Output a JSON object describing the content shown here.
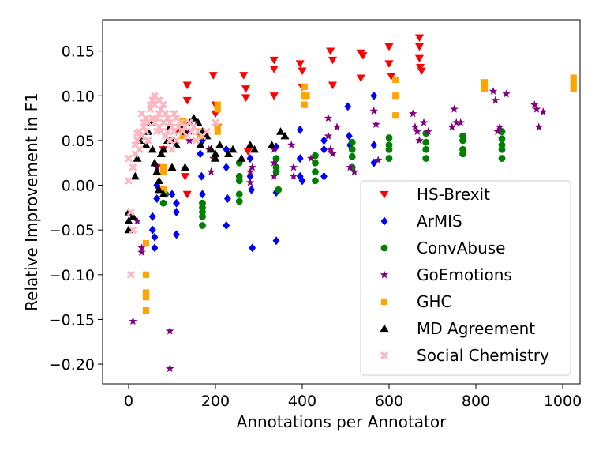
{
  "chart_data": {
    "type": "scatter",
    "title": "",
    "xlabel": "Annotations per Annotator",
    "ylabel": "Relative Improvement in F1",
    "xlim": [
      -60,
      1040
    ],
    "ylim": [
      -0.222,
      0.185
    ],
    "xticks": [
      0,
      200,
      400,
      600,
      800,
      1000
    ],
    "yticks": [
      -0.2,
      -0.15,
      -0.1,
      -0.05,
      0.0,
      0.05,
      0.1,
      0.15
    ],
    "xtick_labels": [
      "0",
      "200",
      "400",
      "600",
      "800",
      "1000"
    ],
    "ytick_labels": [
      "−0.20",
      "−0.15",
      "−0.10",
      "−0.05",
      "0.00",
      "0.05",
      "0.10",
      "0.15"
    ],
    "grid": false,
    "legend_position": "lower-right",
    "series": [
      {
        "name": "HS-Brexit",
        "color": "#ff0000",
        "marker": "triangle-down",
        "points": [
          [
            65,
            0.02
          ],
          [
            70,
            -0.005
          ],
          [
            80,
            0.04
          ],
          [
            95,
            0.05
          ],
          [
            110,
            0.06
          ],
          [
            130,
            0.01
          ],
          [
            135,
            0.095
          ],
          [
            135,
            0.112
          ],
          [
            135,
            -0.01
          ],
          [
            195,
            0.123
          ],
          [
            200,
            0.09
          ],
          [
            200,
            0.08
          ],
          [
            205,
            0.065
          ],
          [
            265,
            0.123
          ],
          [
            270,
            0.108
          ],
          [
            270,
            0.098
          ],
          [
            275,
            0.038
          ],
          [
            335,
            0.14
          ],
          [
            335,
            0.13
          ],
          [
            335,
            0.1
          ],
          [
            395,
            0.136
          ],
          [
            400,
            0.128
          ],
          [
            400,
            0.11
          ],
          [
            465,
            0.15
          ],
          [
            470,
            0.14
          ],
          [
            470,
            0.112
          ],
          [
            535,
            0.148
          ],
          [
            540,
            0.145
          ],
          [
            535,
            0.12
          ],
          [
            600,
            0.155
          ],
          [
            600,
            0.136
          ],
          [
            605,
            0.122
          ],
          [
            670,
            0.165
          ],
          [
            670,
            0.155
          ],
          [
            670,
            0.142
          ],
          [
            672,
            0.132
          ],
          [
            675,
            0.128
          ]
        ]
      },
      {
        "name": "ArMIS",
        "color": "#0000ff",
        "marker": "diamond",
        "points": [
          [
            55,
            -0.035
          ],
          [
            55,
            -0.05
          ],
          [
            60,
            -0.058
          ],
          [
            60,
            -0.07
          ],
          [
            65,
            0.0
          ],
          [
            65,
            -0.015
          ],
          [
            100,
            -0.01
          ],
          [
            110,
            -0.02
          ],
          [
            110,
            -0.03
          ],
          [
            110,
            -0.055
          ],
          [
            165,
            0.035
          ],
          [
            168,
            0.01
          ],
          [
            170,
            -0.01
          ],
          [
            170,
            0.05
          ],
          [
            225,
            0.04
          ],
          [
            225,
            0.02
          ],
          [
            228,
            -0.015
          ],
          [
            225,
            -0.045
          ],
          [
            280,
            0.03
          ],
          [
            280,
            0.01
          ],
          [
            283,
            -0.005
          ],
          [
            285,
            -0.07
          ],
          [
            340,
            0.043
          ],
          [
            340,
            0.02
          ],
          [
            340,
            -0.008
          ],
          [
            340,
            -0.062
          ],
          [
            395,
            0.062
          ],
          [
            395,
            0.03
          ],
          [
            395,
            0.01
          ],
          [
            400,
            0.005
          ],
          [
            450,
            0.05
          ],
          [
            450,
            0.04
          ],
          [
            450,
            0.01
          ],
          [
            505,
            0.088
          ],
          [
            508,
            0.055
          ],
          [
            510,
            0.045
          ],
          [
            565,
            0.1
          ],
          [
            565,
            0.045
          ],
          [
            565,
            0.025
          ]
        ]
      },
      {
        "name": "ConvAbuse",
        "color": "#008000",
        "marker": "circle",
        "points": [
          [
            80,
            -0.02
          ],
          [
            85,
            -0.01
          ],
          [
            170,
            -0.02
          ],
          [
            170,
            -0.025
          ],
          [
            170,
            -0.03
          ],
          [
            170,
            -0.035
          ],
          [
            170,
            -0.045
          ],
          [
            255,
            0.025
          ],
          [
            255,
            0.01
          ],
          [
            255,
            0.005
          ],
          [
            255,
            -0.01
          ],
          [
            255,
            -0.018
          ],
          [
            340,
            0.03
          ],
          [
            340,
            0.02
          ],
          [
            340,
            0.015
          ],
          [
            345,
            -0.005
          ],
          [
            430,
            0.033
          ],
          [
            430,
            0.025
          ],
          [
            430,
            0.015
          ],
          [
            430,
            0.005
          ],
          [
            515,
            0.048
          ],
          [
            515,
            0.04
          ],
          [
            515,
            0.032
          ],
          [
            515,
            0.02
          ],
          [
            600,
            0.053
          ],
          [
            600,
            0.045
          ],
          [
            600,
            0.04
          ],
          [
            600,
            0.03
          ],
          [
            685,
            0.058
          ],
          [
            685,
            0.048
          ],
          [
            685,
            0.04
          ],
          [
            685,
            0.03
          ],
          [
            770,
            0.055
          ],
          [
            770,
            0.05
          ],
          [
            770,
            0.04
          ],
          [
            770,
            0.035
          ],
          [
            860,
            0.06
          ],
          [
            860,
            0.052
          ],
          [
            860,
            0.045
          ],
          [
            860,
            0.04
          ],
          [
            860,
            0.03
          ]
        ]
      },
      {
        "name": "GoEmotions",
        "color": "#800080",
        "marker": "star",
        "points": [
          [
            10,
            -0.152
          ],
          [
            20,
            -0.04
          ],
          [
            30,
            -0.07
          ],
          [
            30,
            -0.075
          ],
          [
            65,
            0.02
          ],
          [
            95,
            -0.163
          ],
          [
            95,
            -0.205
          ],
          [
            140,
            0.05
          ],
          [
            140,
            0.06
          ],
          [
            185,
            0.04
          ],
          [
            190,
            0.015
          ],
          [
            195,
            0.03
          ],
          [
            280,
            0.015
          ],
          [
            280,
            0.003
          ],
          [
            285,
            0.02
          ],
          [
            335,
            0.04
          ],
          [
            335,
            0.025
          ],
          [
            335,
            0.01
          ],
          [
            375,
            0.045
          ],
          [
            380,
            0.02
          ],
          [
            380,
            0.01
          ],
          [
            420,
            0.03
          ],
          [
            460,
            0.075
          ],
          [
            460,
            0.055
          ],
          [
            465,
            0.04
          ],
          [
            470,
            0.035
          ],
          [
            480,
            0.065
          ],
          [
            510,
            0.02
          ],
          [
            520,
            0.015
          ],
          [
            565,
            0.083
          ],
          [
            570,
            0.068
          ],
          [
            575,
            0.028
          ],
          [
            655,
            0.08
          ],
          [
            660,
            0.065
          ],
          [
            665,
            0.06
          ],
          [
            670,
            0.05
          ],
          [
            680,
            0.07
          ],
          [
            690,
            0.06
          ],
          [
            750,
            0.085
          ],
          [
            755,
            0.07
          ],
          [
            765,
            0.07
          ],
          [
            745,
            0.065
          ],
          [
            840,
            0.105
          ],
          [
            845,
            0.095
          ],
          [
            850,
            0.06
          ],
          [
            855,
            0.065
          ],
          [
            870,
            0.102
          ],
          [
            935,
            0.09
          ],
          [
            940,
            0.085
          ],
          [
            945,
            0.065
          ],
          [
            955,
            0.082
          ]
        ]
      },
      {
        "name": "GHC",
        "color": "#ffa500",
        "marker": "square",
        "points": [
          [
            40,
            -0.065
          ],
          [
            40,
            -0.1
          ],
          [
            40,
            -0.12
          ],
          [
            40,
            -0.125
          ],
          [
            40,
            -0.14
          ],
          [
            80,
            0.015
          ],
          [
            80,
            0.02
          ],
          [
            80,
            -0.005
          ],
          [
            125,
            0.06
          ],
          [
            125,
            0.055
          ],
          [
            125,
            0.072
          ],
          [
            165,
            0.06
          ],
          [
            165,
            0.055
          ],
          [
            205,
            0.085
          ],
          [
            205,
            0.09
          ],
          [
            205,
            0.065
          ],
          [
            205,
            0.06
          ],
          [
            405,
            0.11
          ],
          [
            405,
            0.1
          ],
          [
            405,
            0.09
          ],
          [
            410,
            0.1
          ],
          [
            615,
            0.118
          ],
          [
            615,
            0.1
          ],
          [
            615,
            0.078
          ],
          [
            820,
            0.115
          ],
          [
            820,
            0.108
          ],
          [
            1025,
            0.12
          ],
          [
            1025,
            0.115
          ],
          [
            1025,
            0.108
          ]
        ]
      },
      {
        "name": "MD Agreement",
        "color": "#000000",
        "marker": "triangle-up",
        "points": [
          [
            0,
            -0.03
          ],
          [
            0,
            -0.04
          ],
          [
            0,
            -0.05
          ],
          [
            10,
            -0.035
          ],
          [
            15,
            0.01
          ],
          [
            20,
            0.03
          ],
          [
            25,
            0.05
          ],
          [
            30,
            0.055
          ],
          [
            40,
            0.045
          ],
          [
            45,
            0.06
          ],
          [
            50,
            0.07
          ],
          [
            55,
            0.04
          ],
          [
            60,
            0.025
          ],
          [
            65,
            0.015
          ],
          [
            70,
            0.005
          ],
          [
            75,
            0.035
          ],
          [
            80,
            0.04
          ],
          [
            90,
            0.05
          ],
          [
            95,
            0.065
          ],
          [
            100,
            0.05
          ],
          [
            110,
            0.045
          ],
          [
            120,
            0.065
          ],
          [
            130,
            0.06
          ],
          [
            140,
            0.07
          ],
          [
            150,
            0.075
          ],
          [
            160,
            0.07
          ],
          [
            170,
            0.06
          ],
          [
            180,
            0.055
          ],
          [
            190,
            0.04
          ],
          [
            200,
            0.035
          ],
          [
            210,
            0.045
          ],
          [
            230,
            0.035
          ],
          [
            260,
            0.03
          ],
          [
            290,
            0.04
          ],
          [
            330,
            0.045
          ],
          [
            350,
            0.06
          ],
          [
            70,
            -0.005
          ],
          [
            80,
            -0.01
          ],
          [
            100,
            0.02
          ],
          [
            130,
            0.02
          ],
          [
            165,
            0.045
          ],
          [
            200,
            0.03
          ],
          [
            240,
            0.04
          ],
          [
            280,
            0.045
          ],
          [
            360,
            0.055
          ]
        ]
      },
      {
        "name": "Social Chemistry",
        "color": "#ffb6c1",
        "marker": "x",
        "points": [
          [
            0,
            0.03
          ],
          [
            0,
            0.005
          ],
          [
            5,
            -0.03
          ],
          [
            5,
            -0.1
          ],
          [
            10,
            0.02
          ],
          [
            10,
            -0.05
          ],
          [
            15,
            0.045
          ],
          [
            15,
            0.035
          ],
          [
            20,
            0.05
          ],
          [
            20,
            0.058
          ],
          [
            25,
            0.06
          ],
          [
            25,
            0.04
          ],
          [
            30,
            0.08
          ],
          [
            30,
            0.055
          ],
          [
            35,
            0.07
          ],
          [
            35,
            0.065
          ],
          [
            40,
            0.075
          ],
          [
            40,
            0.06
          ],
          [
            45,
            0.07
          ],
          [
            45,
            0.05
          ],
          [
            50,
            0.09
          ],
          [
            50,
            0.085
          ],
          [
            55,
            0.095
          ],
          [
            55,
            0.075
          ],
          [
            60,
            0.09
          ],
          [
            60,
            0.07
          ],
          [
            65,
            0.075
          ],
          [
            65,
            0.06
          ],
          [
            70,
            0.08
          ],
          [
            70,
            0.065
          ],
          [
            75,
            0.085
          ],
          [
            75,
            0.06
          ],
          [
            80,
            0.09
          ],
          [
            80,
            0.07
          ],
          [
            85,
            0.08
          ],
          [
            85,
            0.055
          ],
          [
            90,
            0.075
          ],
          [
            90,
            0.06
          ],
          [
            95,
            0.07
          ],
          [
            95,
            0.05
          ],
          [
            100,
            0.065
          ],
          [
            100,
            0.04
          ],
          [
            105,
            0.08
          ],
          [
            105,
            0.06
          ],
          [
            110,
            0.075
          ],
          [
            110,
            0.05
          ],
          [
            115,
            0.065
          ],
          [
            120,
            0.07
          ],
          [
            125,
            0.06
          ],
          [
            130,
            0.065
          ],
          [
            135,
            0.055
          ],
          [
            140,
            0.07
          ],
          [
            145,
            0.06
          ],
          [
            150,
            0.065
          ],
          [
            155,
            0.05
          ],
          [
            160,
            0.06
          ],
          [
            170,
            0.055
          ],
          [
            180,
            0.06
          ],
          [
            200,
            0.07
          ],
          [
            60,
            0.1
          ],
          [
            70,
            0.095
          ]
        ]
      }
    ]
  }
}
